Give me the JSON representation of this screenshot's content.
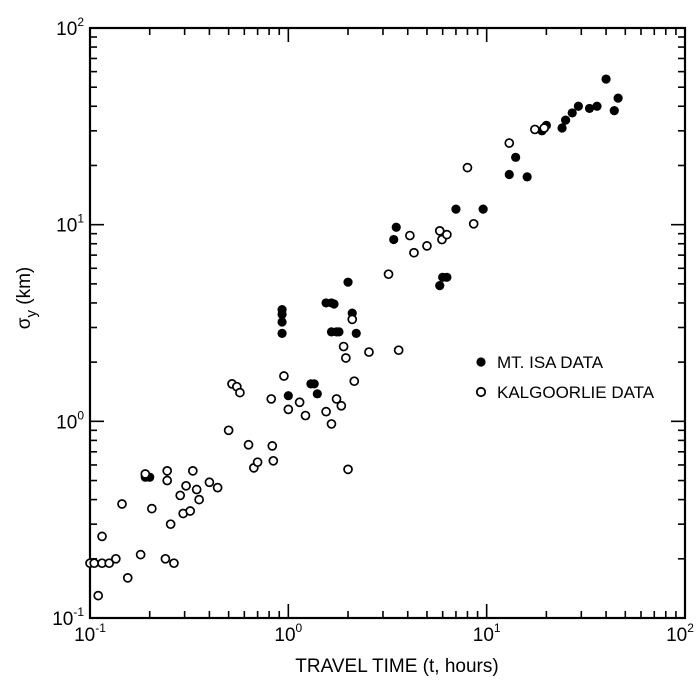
{
  "chart_data": {
    "type": "scatter",
    "xscale": "log",
    "yscale": "log",
    "xlim": [
      0.1,
      100
    ],
    "ylim": [
      0.1,
      100
    ],
    "xlabel": "TRAVEL TIME (t, hours)",
    "ylabel": "σ_y (km)",
    "x_tick_labels": [
      "10^-1",
      "10^0",
      "10^1",
      "10^2"
    ],
    "y_tick_labels": [
      "10^-1",
      "10^0",
      "10^1",
      "10^2"
    ],
    "legend_position": "center-right",
    "grid": false,
    "series": [
      {
        "name": "MT. ISA DATA",
        "marker": "filled-circle",
        "points": [
          [
            0.19,
            0.52
          ],
          [
            0.2,
            0.52
          ],
          [
            0.93,
            3.7
          ],
          [
            0.93,
            3.5
          ],
          [
            0.93,
            3.2
          ],
          [
            0.93,
            2.8
          ],
          [
            1.0,
            1.35
          ],
          [
            1.3,
            1.55
          ],
          [
            1.35,
            1.55
          ],
          [
            1.4,
            1.38
          ],
          [
            1.55,
            4.0
          ],
          [
            1.65,
            4.0
          ],
          [
            1.7,
            3.95
          ],
          [
            1.65,
            2.85
          ],
          [
            1.75,
            2.85
          ],
          [
            1.8,
            2.85
          ],
          [
            2.0,
            5.1
          ],
          [
            2.1,
            3.55
          ],
          [
            2.2,
            2.8
          ],
          [
            3.4,
            8.4
          ],
          [
            3.5,
            9.7
          ],
          [
            5.8,
            4.9
          ],
          [
            6.0,
            5.4
          ],
          [
            6.3,
            5.4
          ],
          [
            7.0,
            12.0
          ],
          [
            9.6,
            12.0
          ],
          [
            13.0,
            18.0
          ],
          [
            14.0,
            22.0
          ],
          [
            16.0,
            17.5
          ],
          [
            19.0,
            30.0
          ],
          [
            20.0,
            32.0
          ],
          [
            24.0,
            31.0
          ],
          [
            25.0,
            34.0
          ],
          [
            27.0,
            37.0
          ],
          [
            29.0,
            40.0
          ],
          [
            33.0,
            39.0
          ],
          [
            36.0,
            40.0
          ],
          [
            40.0,
            55.0
          ],
          [
            44.0,
            38.0
          ],
          [
            46.0,
            44.0
          ]
        ]
      },
      {
        "name": "KALGOORLIE DATA",
        "marker": "open-circle",
        "points": [
          [
            0.1,
            0.19
          ],
          [
            0.105,
            0.19
          ],
          [
            0.11,
            0.13
          ],
          [
            0.115,
            0.26
          ],
          [
            0.115,
            0.19
          ],
          [
            0.125,
            0.19
          ],
          [
            0.135,
            0.2
          ],
          [
            0.145,
            0.38
          ],
          [
            0.155,
            0.16
          ],
          [
            0.18,
            0.21
          ],
          [
            0.19,
            0.54
          ],
          [
            0.205,
            0.36
          ],
          [
            0.24,
            0.2
          ],
          [
            0.245,
            0.56
          ],
          [
            0.245,
            0.5
          ],
          [
            0.255,
            0.3
          ],
          [
            0.265,
            0.19
          ],
          [
            0.285,
            0.42
          ],
          [
            0.295,
            0.34
          ],
          [
            0.305,
            0.47
          ],
          [
            0.32,
            0.35
          ],
          [
            0.33,
            0.56
          ],
          [
            0.345,
            0.45
          ],
          [
            0.355,
            0.4
          ],
          [
            0.4,
            0.49
          ],
          [
            0.44,
            0.46
          ],
          [
            0.5,
            0.9
          ],
          [
            0.52,
            1.55
          ],
          [
            0.55,
            1.5
          ],
          [
            0.57,
            1.4
          ],
          [
            0.63,
            0.76
          ],
          [
            0.67,
            0.58
          ],
          [
            0.7,
            0.62
          ],
          [
            0.82,
            1.3
          ],
          [
            0.83,
            0.75
          ],
          [
            0.84,
            0.63
          ],
          [
            0.95,
            1.7
          ],
          [
            1.0,
            1.15
          ],
          [
            1.14,
            1.25
          ],
          [
            1.22,
            1.07
          ],
          [
            1.55,
            1.12
          ],
          [
            1.65,
            0.97
          ],
          [
            1.75,
            1.3
          ],
          [
            1.85,
            1.2
          ],
          [
            1.95,
            2.1
          ],
          [
            1.9,
            2.4
          ],
          [
            2.0,
            0.57
          ],
          [
            2.1,
            3.3
          ],
          [
            2.15,
            1.6
          ],
          [
            2.55,
            2.25
          ],
          [
            3.2,
            5.6
          ],
          [
            3.6,
            2.3
          ],
          [
            4.1,
            8.8
          ],
          [
            4.3,
            7.2
          ],
          [
            5.0,
            7.8
          ],
          [
            5.8,
            9.3
          ],
          [
            5.95,
            8.4
          ],
          [
            6.3,
            8.9
          ],
          [
            8.0,
            19.5
          ],
          [
            8.6,
            10.1
          ],
          [
            13.0,
            26.0
          ],
          [
            17.5,
            30.5
          ],
          [
            19.5,
            31.0
          ]
        ]
      }
    ]
  }
}
